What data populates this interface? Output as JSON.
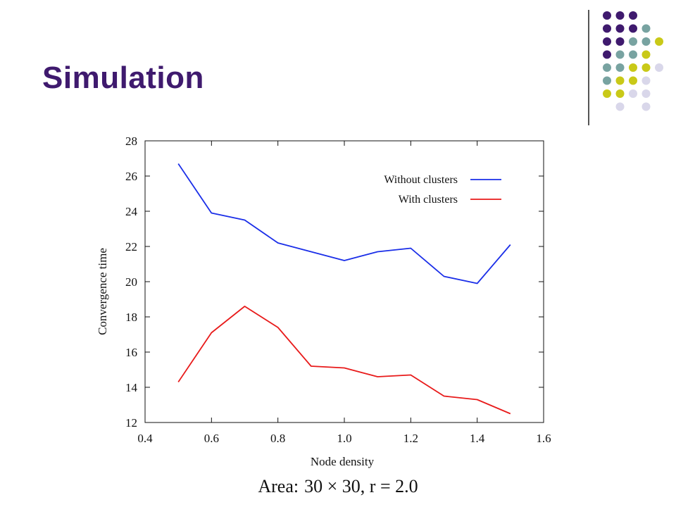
{
  "slide": {
    "title": "Simulation",
    "caption_prefix": "Area:",
    "caption_math": "30 × 30, r = 2.0"
  },
  "theme": {
    "title_color": "#3f1a6e",
    "dot_colors": {
      "purple": "#3f1a6e",
      "teal": "#78a3a1",
      "yellow": "#c9c918",
      "lavender": "#d9d7ea"
    },
    "dot_grid": [
      [
        "purple",
        "purple",
        "purple",
        null,
        null
      ],
      [
        "purple",
        "purple",
        "purple",
        "teal",
        null
      ],
      [
        "purple",
        "purple",
        "teal",
        "teal",
        "yellow"
      ],
      [
        "purple",
        "teal",
        "teal",
        "yellow",
        null
      ],
      [
        "teal",
        "teal",
        "yellow",
        "yellow",
        "lavender"
      ],
      [
        "teal",
        "yellow",
        "yellow",
        "lavender",
        null
      ],
      [
        "yellow",
        "yellow",
        "lavender",
        "lavender",
        null
      ],
      [
        null,
        "lavender",
        null,
        "lavender",
        null
      ]
    ]
  },
  "chart_data": {
    "type": "line",
    "title": "",
    "xlabel": "Node density",
    "ylabel": "Convergence time",
    "xlim": [
      0.4,
      1.6
    ],
    "ylim": [
      12,
      28
    ],
    "xticks": [
      "0.4",
      "0.6",
      "0.8",
      "1.0",
      "1.2",
      "1.4",
      "1.6"
    ],
    "yticks": [
      "12",
      "14",
      "16",
      "18",
      "20",
      "22",
      "24",
      "26",
      "28"
    ],
    "grid": false,
    "legend_position": "top-right",
    "x": [
      0.5,
      0.6,
      0.7,
      0.8,
      0.9,
      1.0,
      1.1,
      1.2,
      1.3,
      1.4,
      1.5
    ],
    "series": [
      {
        "name": "Without clusters",
        "color": "#1a2ee8",
        "values": [
          26.7,
          23.9,
          23.5,
          22.2,
          21.7,
          21.2,
          21.7,
          21.9,
          20.3,
          19.9,
          22.1
        ]
      },
      {
        "name": "With clusters",
        "color": "#e81a1a",
        "values": [
          14.3,
          17.1,
          18.6,
          17.4,
          15.2,
          15.1,
          14.6,
          14.7,
          13.5,
          13.3,
          12.5
        ]
      }
    ]
  }
}
